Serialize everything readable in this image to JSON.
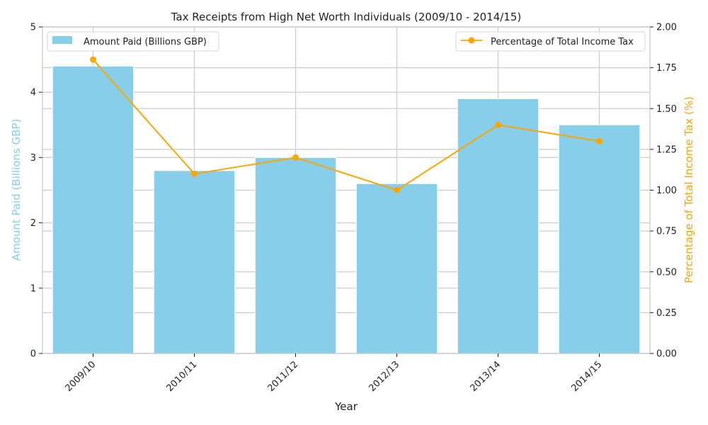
{
  "chart_data": {
    "type": "bar",
    "title": "Tax Receipts from High Net Worth Individuals (2009/10 - 2014/15)",
    "xlabel": "Year",
    "categories": [
      "2009/10",
      "2010/11",
      "2011/12",
      "2012/13",
      "2013/14",
      "2014/15"
    ],
    "series": [
      {
        "name": "Amount Paid (Billions GBP)",
        "type": "bar",
        "axis": "left",
        "color": "#87CEEB",
        "values": [
          4.4,
          2.8,
          3.0,
          2.6,
          3.9,
          3.5
        ]
      },
      {
        "name": "Percentage of Total Income Tax",
        "type": "line",
        "axis": "right",
        "color": "#FFA500",
        "marker": "circle",
        "values": [
          1.8,
          1.1,
          1.2,
          1.0,
          1.4,
          1.3
        ]
      }
    ],
    "y_left": {
      "label": "Amount Paid (Billions GBP)",
      "label_color": "#87CEEB",
      "ylim": [
        0,
        5
      ],
      "ticks": [
        "0",
        "1",
        "2",
        "3",
        "4",
        "5"
      ]
    },
    "y_right": {
      "label": "Percentage of Total Income Tax (%)",
      "label_color": "#FFA500",
      "ylim": [
        0,
        2
      ],
      "ticks": [
        "0.00",
        "0.25",
        "0.50",
        "0.75",
        "1.00",
        "1.25",
        "1.50",
        "1.75",
        "2.00"
      ]
    },
    "grid": true,
    "legend_left_placement": "upper-left",
    "legend_right_placement": "upper-right"
  }
}
